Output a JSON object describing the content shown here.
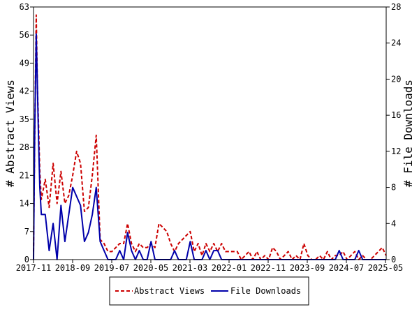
{
  "chart_data": {
    "type": "line",
    "title": "",
    "xlabel": "",
    "ylabel_left": "# Abstract Views",
    "ylabel_right": "# File Downloads",
    "ylim_left": [
      0,
      63
    ],
    "ylim_right": [
      0,
      28
    ],
    "yticks_left": [
      "0",
      "7",
      "14",
      "21",
      "28",
      "35",
      "42",
      "49",
      "56",
      "63"
    ],
    "yticks_right": [
      "0",
      "4",
      "8",
      "12",
      "16",
      "20",
      "24",
      "28"
    ],
    "xticks": [
      "2017-11",
      "2018-09",
      "2019-07",
      "2020-05",
      "2021-03",
      "2022-01",
      "2022-11",
      "2023-09",
      "2024-07",
      "2025-05"
    ],
    "grid": false,
    "legend": "bottom",
    "series": [
      {
        "name": "Abstract Views",
        "axis": "left",
        "color": "#cc0000",
        "style": "dashed",
        "points": [
          [
            0,
            2
          ],
          [
            0.3,
            30
          ],
          [
            0.7,
            61
          ],
          [
            1,
            43
          ],
          [
            1.3,
            33
          ],
          [
            1.6,
            22
          ],
          [
            2,
            15
          ],
          [
            3,
            20
          ],
          [
            4,
            13
          ],
          [
            5,
            24
          ],
          [
            6,
            14
          ],
          [
            7,
            22
          ],
          [
            8,
            14
          ],
          [
            9,
            16
          ],
          [
            10,
            21
          ],
          [
            11,
            27
          ],
          [
            12,
            24
          ],
          [
            13,
            12
          ],
          [
            14,
            13
          ],
          [
            15,
            21
          ],
          [
            16,
            31
          ],
          [
            17,
            5
          ],
          [
            18,
            4
          ],
          [
            19,
            2
          ],
          [
            20,
            2
          ],
          [
            21,
            3
          ],
          [
            22,
            4
          ],
          [
            23,
            4
          ],
          [
            24,
            9
          ],
          [
            25,
            4
          ],
          [
            26,
            2
          ],
          [
            27,
            4
          ],
          [
            28,
            3
          ],
          [
            29,
            3
          ],
          [
            30,
            4
          ],
          [
            31,
            3
          ],
          [
            32,
            9
          ],
          [
            33,
            8
          ],
          [
            34,
            7
          ],
          [
            35,
            4
          ],
          [
            36,
            2
          ],
          [
            37,
            4
          ],
          [
            38,
            5
          ],
          [
            39,
            6
          ],
          [
            40,
            7
          ],
          [
            41,
            2
          ],
          [
            42,
            4
          ],
          [
            43,
            1
          ],
          [
            44,
            4
          ],
          [
            45,
            2
          ],
          [
            46,
            4
          ],
          [
            47,
            2
          ],
          [
            48,
            4
          ],
          [
            49,
            2
          ],
          [
            50,
            2
          ],
          [
            51,
            2
          ],
          [
            52,
            2
          ],
          [
            53,
            0
          ],
          [
            54,
            1
          ],
          [
            55,
            2
          ],
          [
            56,
            0
          ],
          [
            57,
            2
          ],
          [
            58,
            0
          ],
          [
            59,
            1
          ],
          [
            60,
            0
          ],
          [
            61,
            3
          ],
          [
            62,
            2
          ],
          [
            63,
            0
          ],
          [
            64,
            1
          ],
          [
            65,
            2
          ],
          [
            66,
            0
          ],
          [
            67,
            1
          ],
          [
            68,
            0
          ],
          [
            69,
            4
          ],
          [
            70,
            1
          ],
          [
            71,
            0
          ],
          [
            72,
            0
          ],
          [
            73,
            1
          ],
          [
            74,
            0
          ],
          [
            75,
            2
          ],
          [
            76,
            0
          ],
          [
            77,
            1
          ],
          [
            78,
            1
          ],
          [
            79,
            2
          ],
          [
            80,
            0
          ],
          [
            81,
            1
          ],
          [
            82,
            2
          ],
          [
            83,
            0
          ],
          [
            84,
            1
          ],
          [
            85,
            0
          ],
          [
            86,
            0
          ],
          [
            87,
            1
          ],
          [
            88,
            2
          ],
          [
            89,
            3
          ],
          [
            90,
            1
          ]
        ]
      },
      {
        "name": "File Downloads",
        "axis": "right",
        "color": "#0000aa",
        "style": "solid",
        "points": [
          [
            0,
            0
          ],
          [
            0.3,
            14
          ],
          [
            0.7,
            25
          ],
          [
            1,
            19
          ],
          [
            1.3,
            13
          ],
          [
            1.6,
            8
          ],
          [
            2,
            5
          ],
          [
            3,
            5
          ],
          [
            4,
            1
          ],
          [
            5,
            4
          ],
          [
            6,
            0
          ],
          [
            7,
            6
          ],
          [
            8,
            2
          ],
          [
            9,
            5
          ],
          [
            10,
            8
          ],
          [
            11,
            7
          ],
          [
            12,
            6
          ],
          [
            13,
            2
          ],
          [
            14,
            3
          ],
          [
            15,
            5
          ],
          [
            16,
            8
          ],
          [
            17,
            2
          ],
          [
            18,
            1
          ],
          [
            19,
            0
          ],
          [
            20,
            0
          ],
          [
            21,
            0
          ],
          [
            22,
            1
          ],
          [
            23,
            0
          ],
          [
            24,
            3
          ],
          [
            25,
            1
          ],
          [
            26,
            0
          ],
          [
            27,
            1
          ],
          [
            28,
            0
          ],
          [
            29,
            0
          ],
          [
            30,
            2
          ],
          [
            31,
            0
          ],
          [
            32,
            0
          ],
          [
            33,
            0
          ],
          [
            34,
            0
          ],
          [
            35,
            0
          ],
          [
            36,
            1
          ],
          [
            37,
            0
          ],
          [
            38,
            0
          ],
          [
            39,
            0
          ],
          [
            40,
            2
          ],
          [
            41,
            0
          ],
          [
            42,
            0
          ],
          [
            43,
            0
          ],
          [
            44,
            1
          ],
          [
            45,
            0
          ],
          [
            46,
            1
          ],
          [
            47,
            1
          ],
          [
            48,
            0
          ],
          [
            49,
            0
          ],
          [
            50,
            0
          ],
          [
            51,
            0
          ],
          [
            52,
            0
          ],
          [
            53,
            0
          ],
          [
            54,
            0
          ],
          [
            55,
            0
          ],
          [
            56,
            0
          ],
          [
            57,
            0
          ],
          [
            58,
            0
          ],
          [
            59,
            0
          ],
          [
            60,
            0
          ],
          [
            61,
            0
          ],
          [
            62,
            0
          ],
          [
            63,
            0
          ],
          [
            64,
            0
          ],
          [
            65,
            0
          ],
          [
            66,
            0
          ],
          [
            67,
            0
          ],
          [
            68,
            0
          ],
          [
            69,
            0
          ],
          [
            70,
            0
          ],
          [
            71,
            0
          ],
          [
            72,
            0
          ],
          [
            73,
            0
          ],
          [
            74,
            0
          ],
          [
            75,
            0
          ],
          [
            76,
            0
          ],
          [
            77,
            0
          ],
          [
            78,
            1
          ],
          [
            79,
            0
          ],
          [
            80,
            0
          ],
          [
            81,
            0
          ],
          [
            82,
            0
          ],
          [
            83,
            1
          ],
          [
            84,
            0
          ],
          [
            85,
            0
          ],
          [
            86,
            0
          ],
          [
            87,
            0
          ],
          [
            88,
            0
          ],
          [
            89,
            0
          ],
          [
            90,
            0
          ]
        ]
      }
    ]
  }
}
